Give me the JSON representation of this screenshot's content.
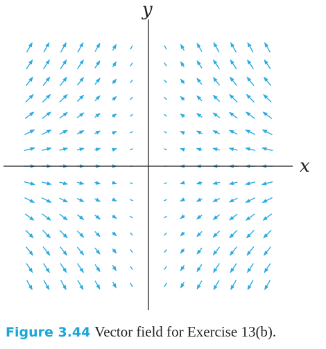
{
  "figure": {
    "axis_x_label": "x",
    "axis_y_label": "y",
    "arrow_color": "#29abe2",
    "axis_color": "#231f20",
    "grid_columns": [
      -7,
      -6,
      -5,
      -4,
      -3,
      -2,
      -1,
      1,
      2,
      3,
      4,
      5,
      6,
      7
    ],
    "grid_rows": [
      7,
      6,
      5,
      4,
      3,
      2,
      1,
      0,
      -1,
      -2,
      -3,
      -4,
      -5,
      -6,
      -7
    ],
    "field_description_note": "arrows point toward the y-axis; horizontal component opposes x, vertical component grows with y and x"
  },
  "caption": {
    "label": "Figure 3.44",
    "text": "Vector field for Exercise 13(b)."
  }
}
